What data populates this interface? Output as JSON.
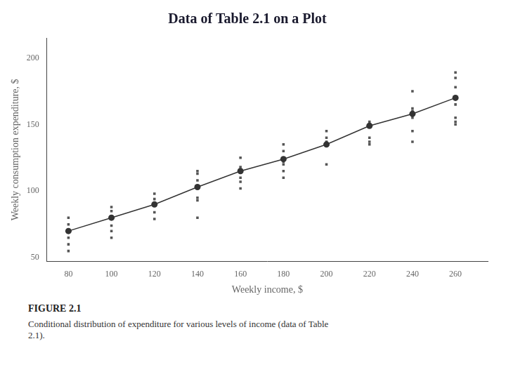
{
  "chart_data": {
    "type": "scatter",
    "title": "Data of Table 2.1 on a Plot",
    "xlabel": "Weekly income, $",
    "ylabel": "Weekly consumption expenditure, $",
    "figure_caption_bold": "FIGURE 2.1",
    "figure_caption": "Conditional distribution of expenditure for various levels of income (data of Table\n2.1).",
    "xlim": [
      70,
      275
    ],
    "ylim": [
      47,
      215
    ],
    "xticks": [
      80,
      100,
      120,
      140,
      160,
      180,
      200,
      220,
      240,
      260
    ],
    "yticks": [
      50,
      100,
      150,
      200
    ],
    "grid": false,
    "series": [
      {
        "type": "scatter",
        "color": "#555555",
        "marker": "square",
        "line_style": "none",
        "x": [
          80,
          80,
          80,
          80,
          80,
          80,
          100,
          100,
          100,
          100,
          100,
          100,
          120,
          120,
          120,
          120,
          120,
          140,
          140,
          140,
          140,
          140,
          140,
          140,
          160,
          160,
          160,
          160,
          160,
          160,
          180,
          180,
          180,
          180,
          180,
          180,
          180,
          200,
          200,
          200,
          200,
          200,
          220,
          220,
          220,
          220,
          220,
          220,
          240,
          240,
          240,
          240,
          240,
          240,
          260,
          260,
          260,
          260,
          260,
          260,
          260,
          260
        ],
        "values": [
          55,
          60,
          65,
          70,
          75,
          80,
          65,
          70,
          74,
          80,
          85,
          88,
          79,
          84,
          90,
          94,
          98,
          80,
          93,
          95,
          103,
          108,
          113,
          115,
          102,
          107,
          110,
          116,
          118,
          125,
          110,
          115,
          120,
          122,
          125,
          130,
          135,
          120,
          136,
          137,
          140,
          145,
          135,
          137,
          140,
          148,
          150,
          152,
          137,
          145,
          155,
          160,
          162,
          175,
          150,
          152,
          155,
          165,
          170,
          178,
          185,
          189
        ]
      },
      {
        "type": "line",
        "color": "#333333",
        "marker": "circle",
        "line_style": "solid",
        "x": [
          80,
          100,
          120,
          140,
          160,
          180,
          200,
          220,
          240,
          260
        ],
        "values": [
          70,
          80,
          90,
          103,
          115,
          124,
          135,
          149,
          158,
          170
        ]
      }
    ]
  }
}
